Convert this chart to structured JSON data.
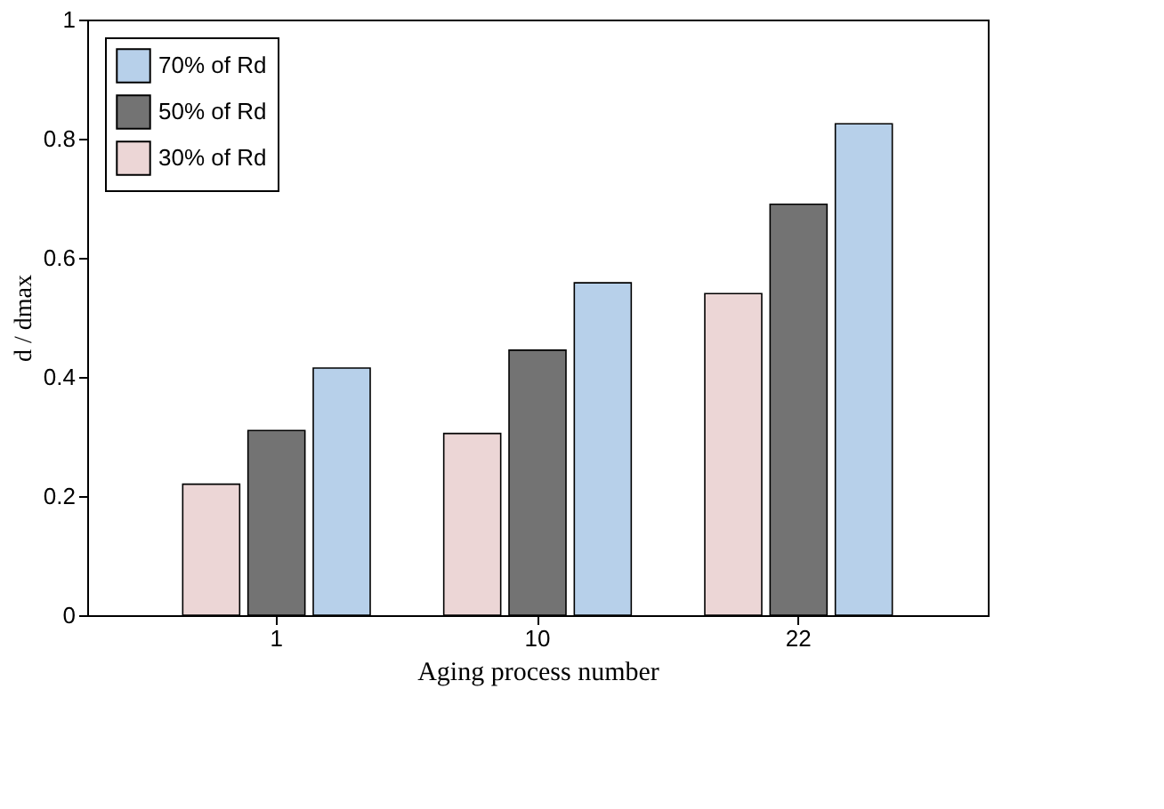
{
  "chart_data": {
    "type": "bar",
    "xlabel": "Aging process number",
    "ylabel": "d / dmax",
    "categories": [
      "1",
      "10",
      "22"
    ],
    "series": [
      {
        "name": "30% of Rd",
        "color": "#ecd6d6",
        "values": [
          0.22,
          0.305,
          0.54
        ]
      },
      {
        "name": "50% of Rd",
        "color": "#737373",
        "values": [
          0.31,
          0.445,
          0.69
        ]
      },
      {
        "name": "70% of Rd",
        "color": "#b7d0ea",
        "values": [
          0.415,
          0.558,
          0.825
        ]
      }
    ],
    "ylim": [
      0,
      1
    ],
    "yticks": [
      0,
      0.2,
      0.4,
      0.6,
      0.8,
      1
    ],
    "grid": false,
    "legend": "top left"
  }
}
